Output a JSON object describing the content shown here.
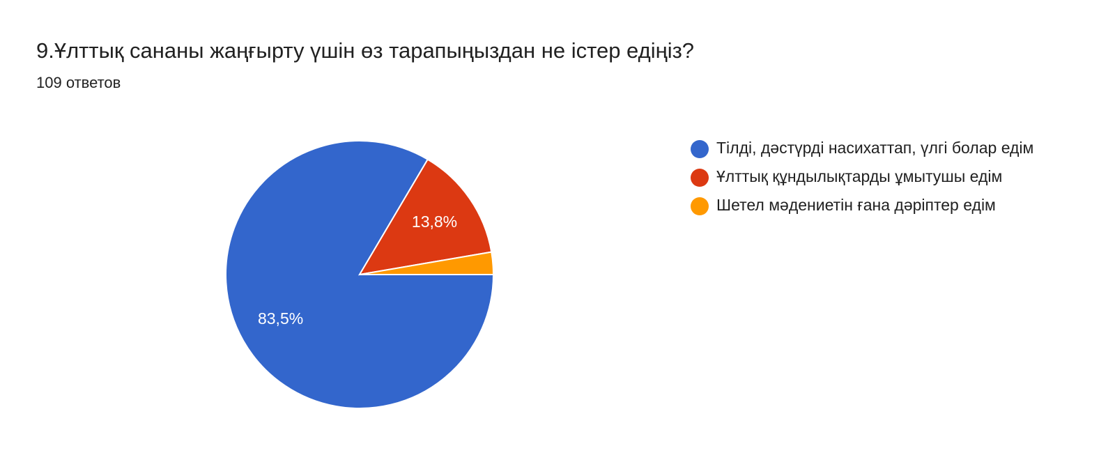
{
  "chart_data": {
    "type": "pie",
    "title": "9.Ұлттық сананы жаңғырту үшін өз тарапыңыздан не істер едіңіз?",
    "subtitle": "109 ответов",
    "categories": [
      "Тілді, дәстүрді насихаттап, үлгі болар едім",
      "Ұлттық құндылықтарды ұмытушы едім",
      "Шетел мәдениетін ғана дәріптер едім"
    ],
    "values": [
      83.5,
      13.8,
      2.7
    ],
    "value_labels": [
      "83,5%",
      "13,8%",
      null
    ],
    "colors": [
      "#3366cc",
      "#dc3912",
      "#ff9900"
    ],
    "legend": "right"
  }
}
